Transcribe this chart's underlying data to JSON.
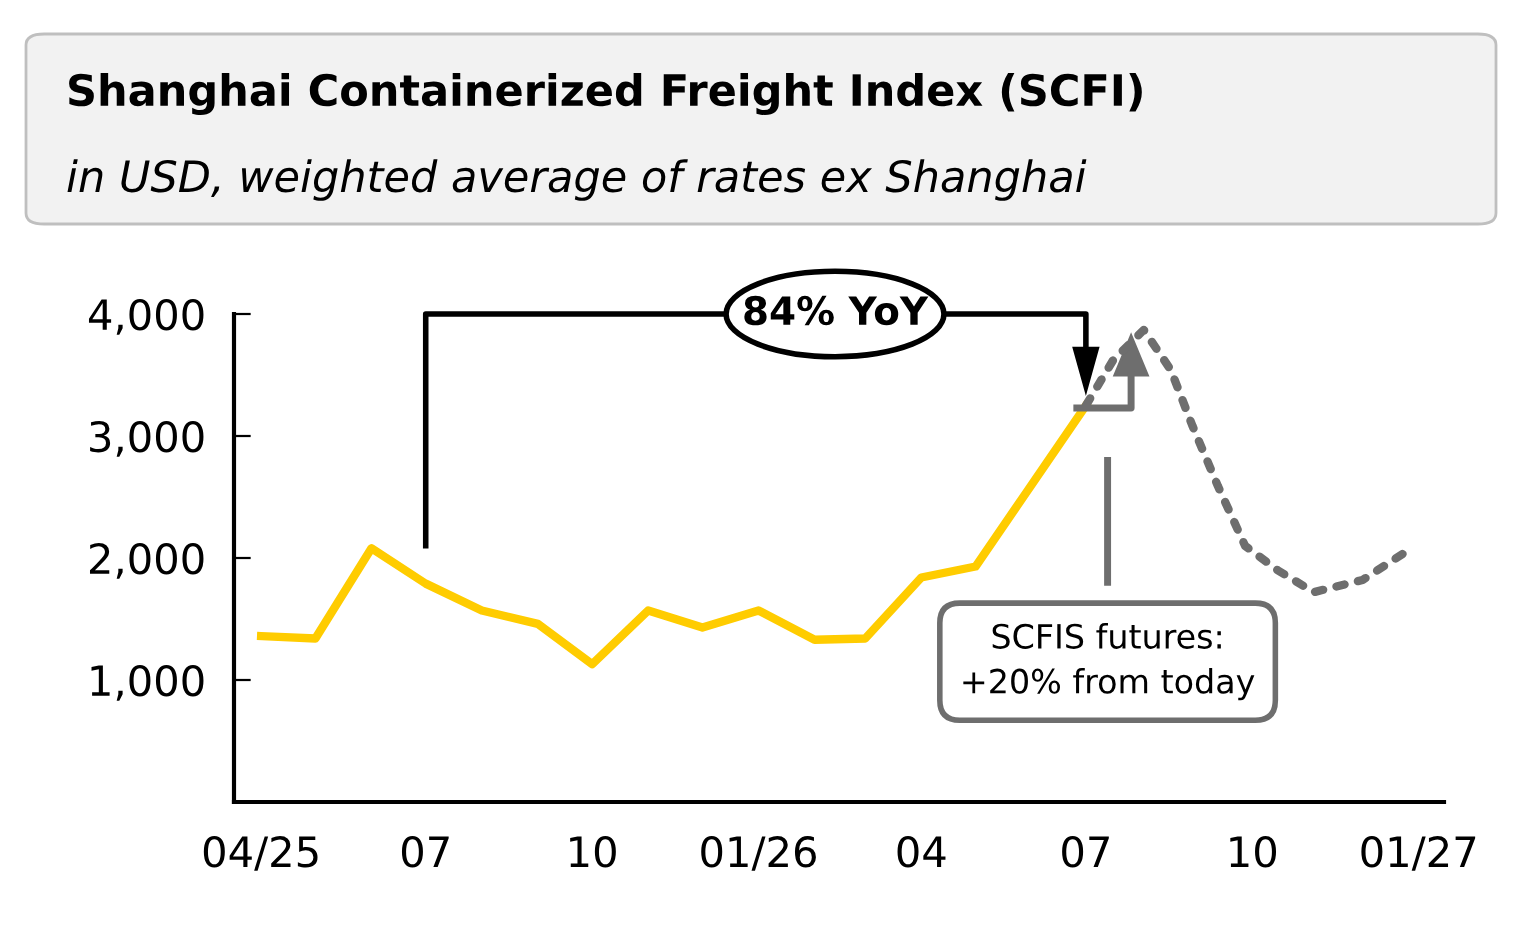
{
  "chart_data": {
    "type": "line",
    "title": "Shanghai Containerized Freight Index (SCFI)",
    "subtitle": "in USD, weighted average of rates ex Shanghai",
    "series": [
      {
        "color": "#ffcc00",
        "line_style": "solid",
        "x": [
          "2025-04",
          "2025-05",
          "2025-06",
          "2025-07",
          "2025-08",
          "2025-09",
          "2025-10",
          "2025-11",
          "2025-12",
          "2026-01",
          "2026-02",
          "2026-03",
          "2026-04",
          "2026-05",
          "2026-07"
        ],
        "values": [
          1360,
          1340,
          2080,
          1790,
          1570,
          1460,
          1130,
          1570,
          1430,
          1570,
          1330,
          1340,
          1840,
          1930,
          3250
        ]
      },
      {
        "color": "#6e6e6e",
        "line_style": "dotted",
        "x": [
          "2026-07-01",
          "2026-07-16",
          "2026-08-02",
          "2026-08-17",
          "2026-08-29",
          "2026-09-12",
          "2026-09-27",
          "2026-10-15",
          "2026-11-04",
          "2026-12-01",
          "2026-12-28"
        ],
        "values": [
          3250,
          3620,
          3870,
          3540,
          3080,
          2590,
          2100,
          1900,
          1720,
          1820,
          2080
        ]
      }
    ],
    "xlim": [
      "2025-03-17",
      "2027-01-15"
    ],
    "xticks": [
      {
        "value": "2025-04",
        "label": "04/25"
      },
      {
        "value": "2025-07",
        "label": "07"
      },
      {
        "value": "2025-10",
        "label": "10"
      },
      {
        "value": "2026-01",
        "label": "01/26"
      },
      {
        "value": "2026-04",
        "label": "04"
      },
      {
        "value": "2026-07",
        "label": "07"
      },
      {
        "value": "2026-10",
        "label": "10"
      },
      {
        "value": "2027-01",
        "label": "01/27"
      }
    ],
    "ylim": [
      0,
      4000
    ],
    "yticks": [
      {
        "value": 1000,
        "label": "1,000"
      },
      {
        "value": 2000,
        "label": "2,000"
      },
      {
        "value": 3000,
        "label": "3,000"
      },
      {
        "value": 4000,
        "label": "4,000"
      }
    ],
    "grid": false,
    "legend": false,
    "annotations": [
      "84% YoY",
      "SCFIS futures:\n+20% from today"
    ]
  }
}
